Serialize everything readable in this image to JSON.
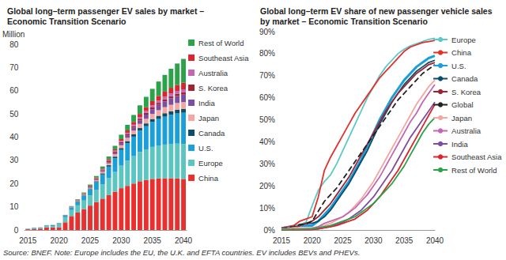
{
  "chart_data": [
    {
      "type": "bar",
      "title": "Global long–term passenger EV sales by market –\nEconomic Transition Scenario",
      "ylabel": "Million",
      "stacked": true,
      "grid": false,
      "legend": "right",
      "categories": [
        "2015",
        null,
        null,
        null,
        null,
        "2020",
        null,
        null,
        null,
        null,
        "2025",
        null,
        null,
        null,
        null,
        "2030",
        null,
        null,
        null,
        null,
        "2035",
        null,
        null,
        null,
        null,
        "2040"
      ],
      "ylim": [
        0,
        80
      ],
      "yticks": [
        0,
        10,
        20,
        30,
        40,
        50,
        60,
        70,
        80
      ],
      "series": [
        {
          "name": "China",
          "color": "#e8312f",
          "values": [
            0.3,
            0.5,
            0.6,
            1.1,
            1.1,
            1.2,
            3.3,
            6.0,
            7.5,
            9.0,
            10.5,
            12.0,
            13.5,
            15.0,
            16.5,
            18.0,
            19.0,
            20.0,
            21.0,
            21.5,
            22.0,
            22.2,
            22.3,
            22.3,
            22.2,
            22.0
          ]
        },
        {
          "name": "Europe",
          "color": "#5bc5c0",
          "values": [
            0.2,
            0.2,
            0.3,
            0.4,
            0.6,
            1.3,
            2.2,
            2.6,
            3.1,
            3.7,
            4.4,
            5.2,
            6.2,
            7.3,
            8.5,
            9.7,
            10.8,
            11.8,
            12.6,
            13.2,
            13.8,
            14.2,
            14.5,
            14.8,
            15.0,
            15.0
          ]
        },
        {
          "name": "U.S.",
          "color": "#1a9fd8",
          "values": [
            0.1,
            0.2,
            0.2,
            0.4,
            0.3,
            0.3,
            0.6,
            1.0,
            1.5,
            2.0,
            2.7,
            3.4,
            4.2,
            5.0,
            5.9,
            6.8,
            7.6,
            8.4,
            9.2,
            10.0,
            10.7,
            11.4,
            12.0,
            12.5,
            13.0,
            13.5
          ]
        },
        {
          "name": "Canada",
          "color": "#0c4d6a",
          "values": [
            0,
            0,
            0,
            0.05,
            0.05,
            0.05,
            0.1,
            0.1,
            0.2,
            0.2,
            0.3,
            0.4,
            0.5,
            0.6,
            0.7,
            0.8,
            0.9,
            1.0,
            1.1,
            1.2,
            1.3,
            1.4,
            1.5,
            1.5,
            1.6,
            1.6
          ]
        },
        {
          "name": "Japan",
          "color": "#f4a6a0",
          "values": [
            0.03,
            0.03,
            0.05,
            0.05,
            0.04,
            0.03,
            0.05,
            0.1,
            0.15,
            0.2,
            0.3,
            0.4,
            0.6,
            0.8,
            1.0,
            1.2,
            1.4,
            1.6,
            1.8,
            2.0,
            2.2,
            2.4,
            2.6,
            2.8,
            2.9,
            3.0
          ]
        },
        {
          "name": "India",
          "color": "#7b4ea3",
          "values": [
            0,
            0,
            0,
            0,
            0,
            0,
            0.02,
            0.05,
            0.1,
            0.15,
            0.2,
            0.3,
            0.4,
            0.5,
            0.7,
            0.9,
            1.1,
            1.3,
            1.5,
            1.8,
            2.0,
            2.3,
            2.5,
            2.8,
            3.0,
            3.2
          ]
        },
        {
          "name": "S. Korea",
          "color": "#a02334",
          "values": [
            0,
            0,
            0.01,
            0.03,
            0.04,
            0.05,
            0.1,
            0.15,
            0.2,
            0.25,
            0.3,
            0.35,
            0.4,
            0.45,
            0.5,
            0.55,
            0.6,
            0.65,
            0.7,
            0.75,
            0.8,
            0.85,
            0.9,
            0.95,
            1.0,
            1.0
          ]
        },
        {
          "name": "Australia",
          "color": "#c367b3",
          "values": [
            0,
            0,
            0,
            0,
            0.01,
            0.01,
            0.02,
            0.04,
            0.06,
            0.1,
            0.15,
            0.2,
            0.25,
            0.3,
            0.35,
            0.4,
            0.5,
            0.6,
            0.7,
            0.8,
            0.9,
            1.0,
            1.1,
            1.2,
            1.2,
            1.3
          ]
        },
        {
          "name": "Southeast Asia",
          "color": "#d9262e",
          "values": [
            0,
            0,
            0,
            0,
            0,
            0,
            0.02,
            0.05,
            0.1,
            0.15,
            0.2,
            0.3,
            0.4,
            0.5,
            0.6,
            0.8,
            1.0,
            1.2,
            1.4,
            1.6,
            1.8,
            2.0,
            2.2,
            2.4,
            2.6,
            2.8
          ]
        },
        {
          "name": "Rest of World",
          "color": "#2ca24b",
          "values": [
            0.02,
            0.03,
            0.05,
            0.05,
            0.05,
            0.06,
            0.1,
            0.2,
            0.3,
            0.4,
            0.5,
            0.7,
            0.9,
            1.2,
            1.5,
            1.9,
            2.4,
            3.0,
            3.7,
            4.5,
            5.3,
            6.2,
            7.2,
            8.2,
            9.2,
            10.3
          ]
        }
      ]
    },
    {
      "type": "line",
      "title": "Global long–term EV share of new passenger vehicle sales\nby market – Economic Transition Scenario",
      "grid": false,
      "legend": "right",
      "marker": "none",
      "categories": [
        "2015",
        null,
        null,
        null,
        null,
        "2020",
        null,
        null,
        null,
        null,
        "2025",
        null,
        null,
        null,
        null,
        "2030",
        null,
        null,
        null,
        null,
        "2035",
        null,
        null,
        null,
        null,
        "2040"
      ],
      "ylim": [
        0,
        90
      ],
      "yticks": [
        {
          "value": 0,
          "label": "0%"
        },
        {
          "value": 10,
          "label": "10%"
        },
        {
          "value": 20,
          "label": "20%"
        },
        {
          "value": 30,
          "label": "30%"
        },
        {
          "value": 40,
          "label": "40%"
        },
        {
          "value": 50,
          "label": "50%"
        },
        {
          "value": 60,
          "label": "60%"
        },
        {
          "value": 70,
          "label": "70%"
        },
        {
          "value": 80,
          "label": "80%"
        },
        {
          "value": 90,
          "label": "90%"
        }
      ],
      "series": [
        {
          "name": "Europe",
          "color": "#5cc9c6",
          "line_style": "solid",
          "values": [
            1,
            1.5,
            2,
            2.5,
            3.5,
            11,
            18,
            22,
            25,
            30,
            36,
            42,
            48,
            54,
            60,
            65,
            70,
            74,
            77,
            80,
            82,
            83.5,
            84.5,
            85.5,
            86.5,
            87
          ]
        },
        {
          "name": "China",
          "color": "#e0312b",
          "line_style": "solid",
          "values": [
            1,
            1.5,
            2,
            4,
            5,
            6,
            15,
            27,
            33,
            38,
            43,
            48,
            53,
            57,
            61,
            65,
            69,
            72,
            75,
            78,
            81,
            83,
            84,
            85,
            85.5,
            86
          ]
        },
        {
          "name": "U.S.",
          "color": "#1a9fd8",
          "line_style": "solid",
          "values": [
            0.6,
            0.8,
            1,
            2,
            2,
            2,
            4,
            7,
            10,
            14,
            18,
            22,
            27,
            32,
            38,
            44,
            50,
            55,
            60,
            64,
            68,
            71,
            74,
            76,
            78,
            79
          ]
        },
        {
          "name": "Canada",
          "color": "#0c4d6a",
          "line_style": "solid",
          "values": [
            0.4,
            0.5,
            0.8,
            2,
            3,
            3,
            4,
            6,
            9,
            13,
            17,
            21,
            26,
            31,
            36,
            42,
            48,
            53,
            58,
            62,
            66,
            69,
            72,
            74,
            76,
            77
          ]
        },
        {
          "name": "S. Korea",
          "color": "#a02334",
          "line_style": "solid",
          "values": [
            0.2,
            0.3,
            0.9,
            2,
            3,
            4,
            6,
            9,
            12,
            16,
            20,
            24,
            29,
            34,
            39,
            44,
            49,
            54,
            58,
            62,
            65,
            68,
            71,
            73,
            75,
            76
          ]
        },
        {
          "name": "Global",
          "color": "#222222",
          "line_style": "dashed",
          "values": [
            0.7,
            1,
            1.5,
            2.5,
            2.7,
            4,
            8.5,
            13,
            16,
            19,
            23,
            27,
            31,
            35,
            39,
            43,
            47,
            51,
            55,
            59,
            62,
            65,
            68,
            71,
            73,
            75
          ]
        },
        {
          "name": "Japan",
          "color": "#f4a6a0",
          "line_style": "solid",
          "values": [
            0.5,
            0.5,
            1,
            1,
            1,
            1,
            1.5,
            2,
            3,
            4.5,
            6,
            8,
            11,
            14,
            18,
            22,
            27,
            32,
            37,
            42,
            47,
            52,
            57,
            61,
            65,
            68
          ]
        },
        {
          "name": "Australia",
          "color": "#c367b3",
          "line_style": "solid",
          "values": [
            0.1,
            0.2,
            0.2,
            0.3,
            0.5,
            0.7,
            1.5,
            3,
            4,
            5,
            6,
            8,
            10,
            13,
            16,
            20,
            24,
            29,
            34,
            39,
            44,
            49,
            53,
            58,
            62,
            66
          ]
        },
        {
          "name": "India",
          "color": "#7b4ea3",
          "line_style": "solid",
          "values": [
            0,
            0,
            0.1,
            0.1,
            0.1,
            0.2,
            0.5,
            1,
            1.5,
            2.5,
            3.5,
            5,
            7,
            9,
            12,
            15,
            19,
            23,
            27,
            32,
            37,
            42,
            46,
            50,
            54,
            58
          ]
        },
        {
          "name": "Southeast Asia",
          "color": "#d9262e",
          "line_style": "solid",
          "values": [
            0,
            0,
            0,
            0.1,
            0.1,
            0.2,
            0.5,
            1,
            1.5,
            2,
            3,
            4,
            5,
            7,
            9,
            12,
            15,
            19,
            23,
            27,
            32,
            37,
            42,
            47,
            52,
            57
          ]
        },
        {
          "name": "Rest of World",
          "color": "#2ca24b",
          "line_style": "solid",
          "values": [
            0.1,
            0.1,
            0.2,
            0.3,
            0.4,
            0.5,
            1,
            1.5,
            2,
            3,
            4,
            5,
            6,
            8,
            10,
            12,
            15,
            18,
            21,
            25,
            29,
            34,
            39,
            44,
            48,
            51
          ]
        }
      ]
    }
  ],
  "source_note": "Source: BNEF. Note: Europe includes the EU, the U.K. and EFTA countries. EV includes BEVs and PHEVs."
}
